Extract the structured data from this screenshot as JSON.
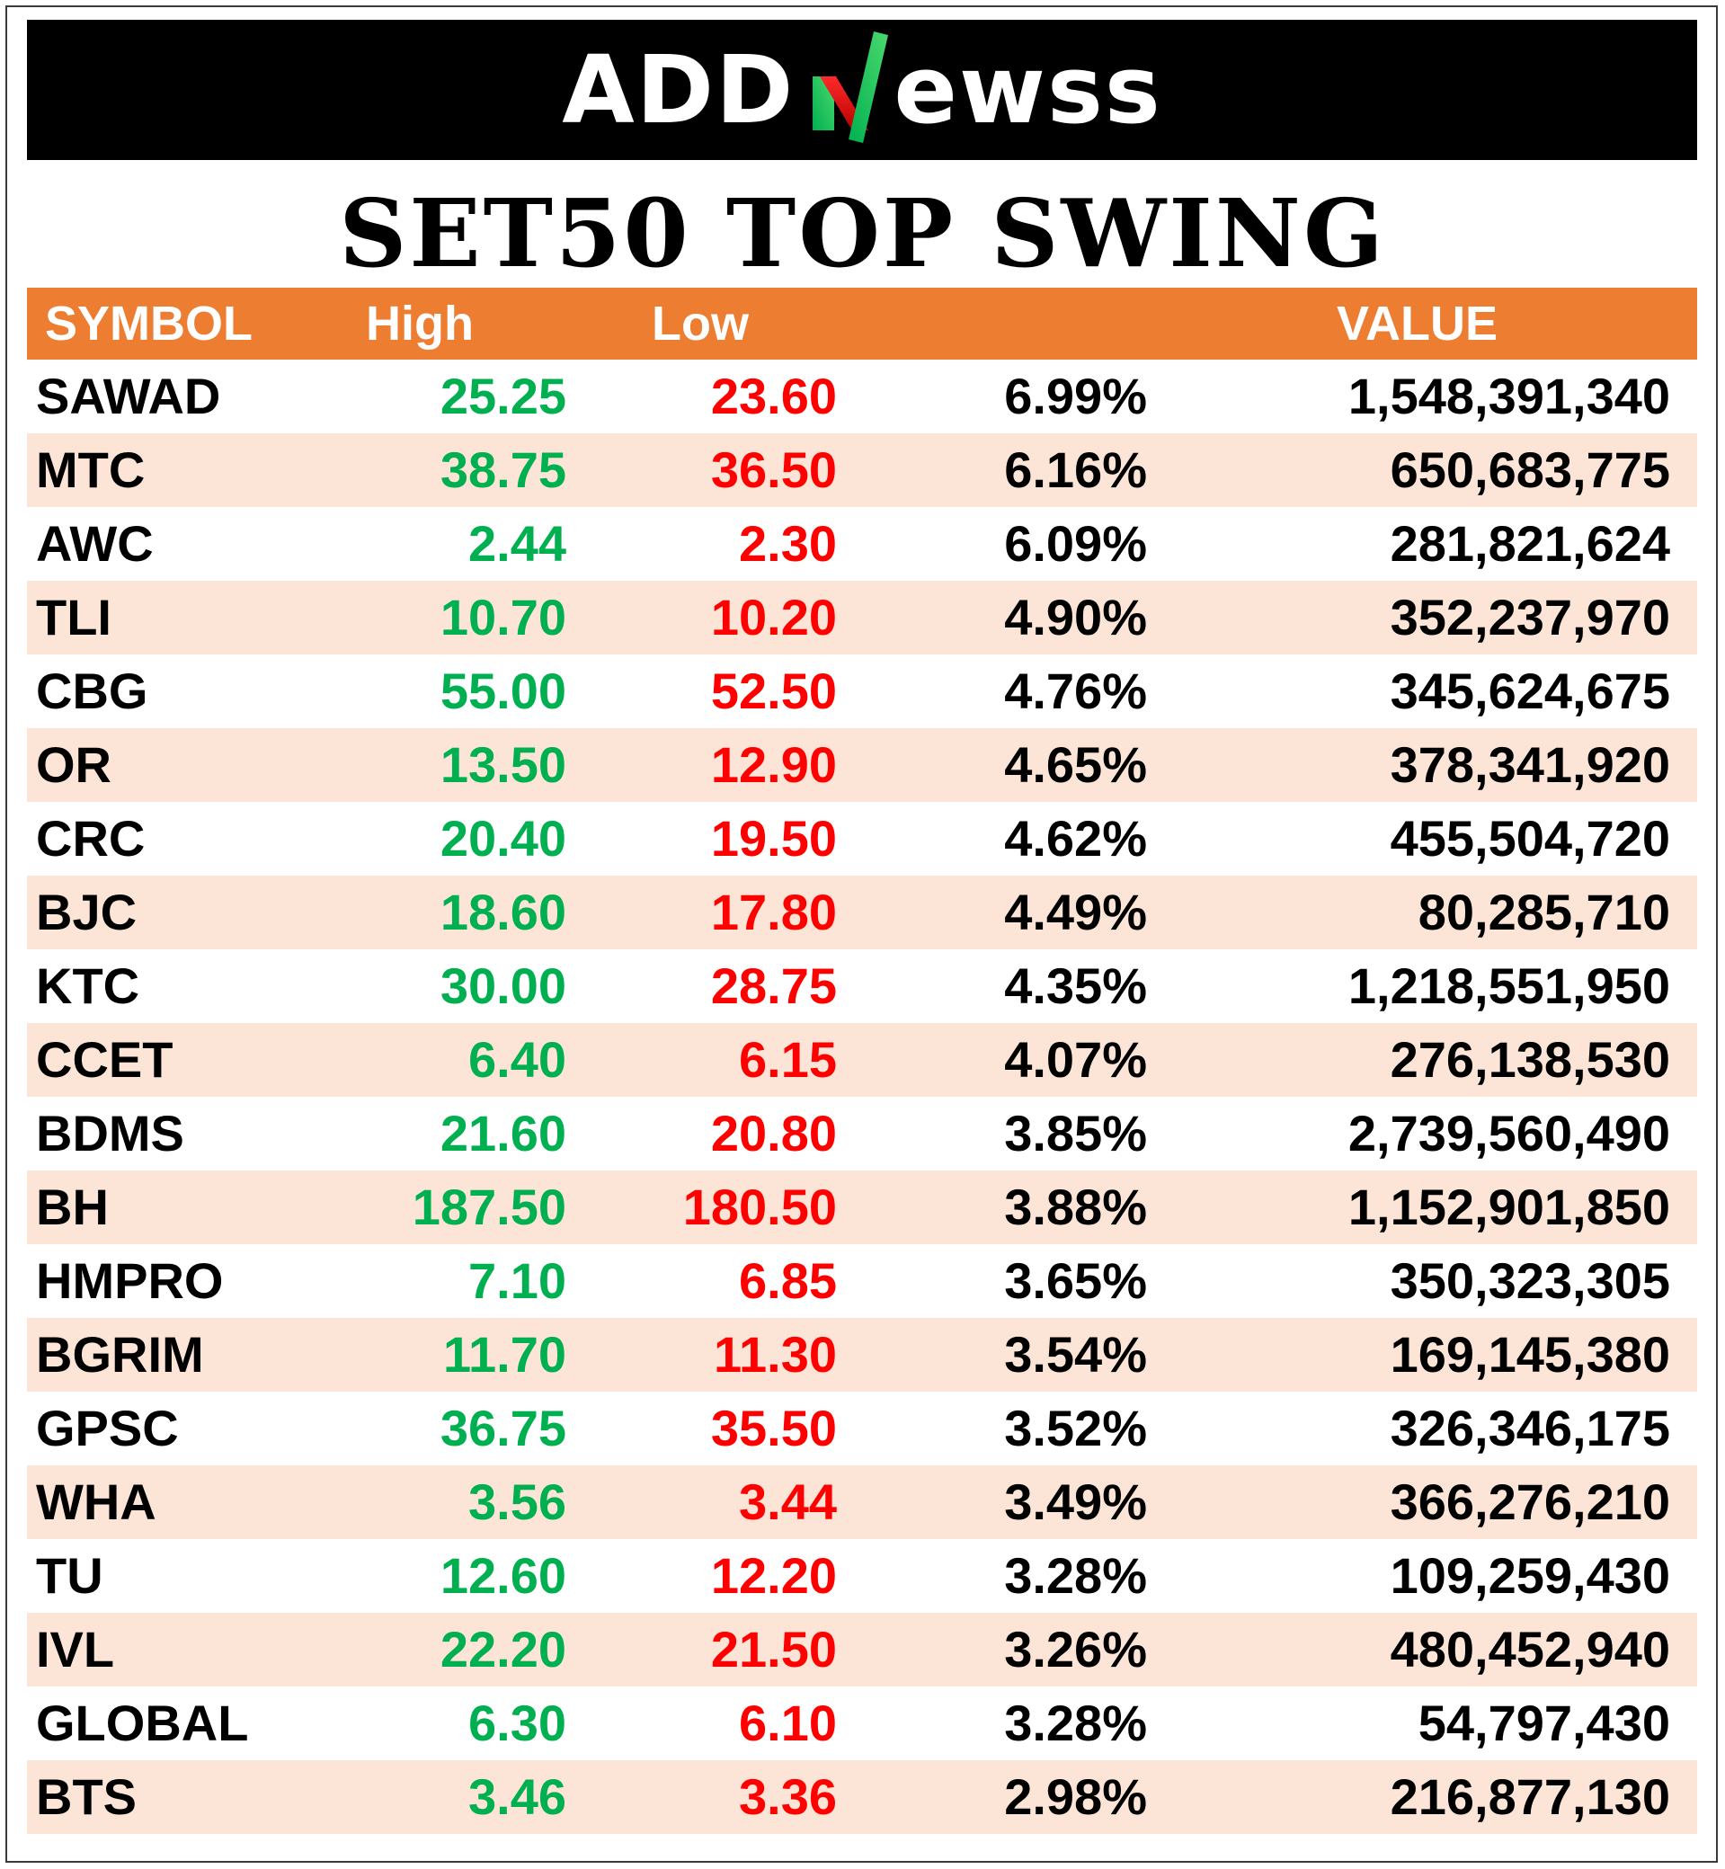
{
  "logo": {
    "text_left": "ADD",
    "text_right": "ewss",
    "icon": "slash-n-logo-icon",
    "colors": {
      "green": "#00b050",
      "red": "#e00000"
    }
  },
  "title": "SET50 TOP SWING",
  "table": {
    "headers": {
      "symbol": "SYMBOL",
      "high": "High",
      "low": "Low",
      "pct": "",
      "value": "VALUE"
    },
    "colors": {
      "header_bg": "#ed7d31",
      "alt_row_bg": "#fce4d6",
      "high": "#00b050",
      "low": "#ff0000"
    },
    "rows": [
      {
        "symbol": "SAWAD",
        "high": "25.25",
        "low": "23.60",
        "pct": "6.99%",
        "value": "1,548,391,340"
      },
      {
        "symbol": "MTC",
        "high": "38.75",
        "low": "36.50",
        "pct": "6.16%",
        "value": "650,683,775"
      },
      {
        "symbol": "AWC",
        "high": "2.44",
        "low": "2.30",
        "pct": "6.09%",
        "value": "281,821,624"
      },
      {
        "symbol": "TLI",
        "high": "10.70",
        "low": "10.20",
        "pct": "4.90%",
        "value": "352,237,970"
      },
      {
        "symbol": "CBG",
        "high": "55.00",
        "low": "52.50",
        "pct": "4.76%",
        "value": "345,624,675"
      },
      {
        "symbol": "OR",
        "high": "13.50",
        "low": "12.90",
        "pct": "4.65%",
        "value": "378,341,920"
      },
      {
        "symbol": "CRC",
        "high": "20.40",
        "low": "19.50",
        "pct": "4.62%",
        "value": "455,504,720"
      },
      {
        "symbol": "BJC",
        "high": "18.60",
        "low": "17.80",
        "pct": "4.49%",
        "value": "80,285,710"
      },
      {
        "symbol": "KTC",
        "high": "30.00",
        "low": "28.75",
        "pct": "4.35%",
        "value": "1,218,551,950"
      },
      {
        "symbol": "CCET",
        "high": "6.40",
        "low": "6.15",
        "pct": "4.07%",
        "value": "276,138,530"
      },
      {
        "symbol": "BDMS",
        "high": "21.60",
        "low": "20.80",
        "pct": "3.85%",
        "value": "2,739,560,490"
      },
      {
        "symbol": "BH",
        "high": "187.50",
        "low": "180.50",
        "pct": "3.88%",
        "value": "1,152,901,850"
      },
      {
        "symbol": "HMPRO",
        "high": "7.10",
        "low": "6.85",
        "pct": "3.65%",
        "value": "350,323,305"
      },
      {
        "symbol": "BGRIM",
        "high": "11.70",
        "low": "11.30",
        "pct": "3.54%",
        "value": "169,145,380"
      },
      {
        "symbol": "GPSC",
        "high": "36.75",
        "low": "35.50",
        "pct": "3.52%",
        "value": "326,346,175"
      },
      {
        "symbol": "WHA",
        "high": "3.56",
        "low": "3.44",
        "pct": "3.49%",
        "value": "366,276,210"
      },
      {
        "symbol": "TU",
        "high": "12.60",
        "low": "12.20",
        "pct": "3.28%",
        "value": "109,259,430"
      },
      {
        "symbol": "IVL",
        "high": "22.20",
        "low": "21.50",
        "pct": "3.26%",
        "value": "480,452,940"
      },
      {
        "symbol": "GLOBAL",
        "high": "6.30",
        "low": "6.10",
        "pct": "3.28%",
        "value": "54,797,430"
      },
      {
        "symbol": "BTS",
        "high": "3.46",
        "low": "3.36",
        "pct": "2.98%",
        "value": "216,877,130"
      }
    ]
  }
}
